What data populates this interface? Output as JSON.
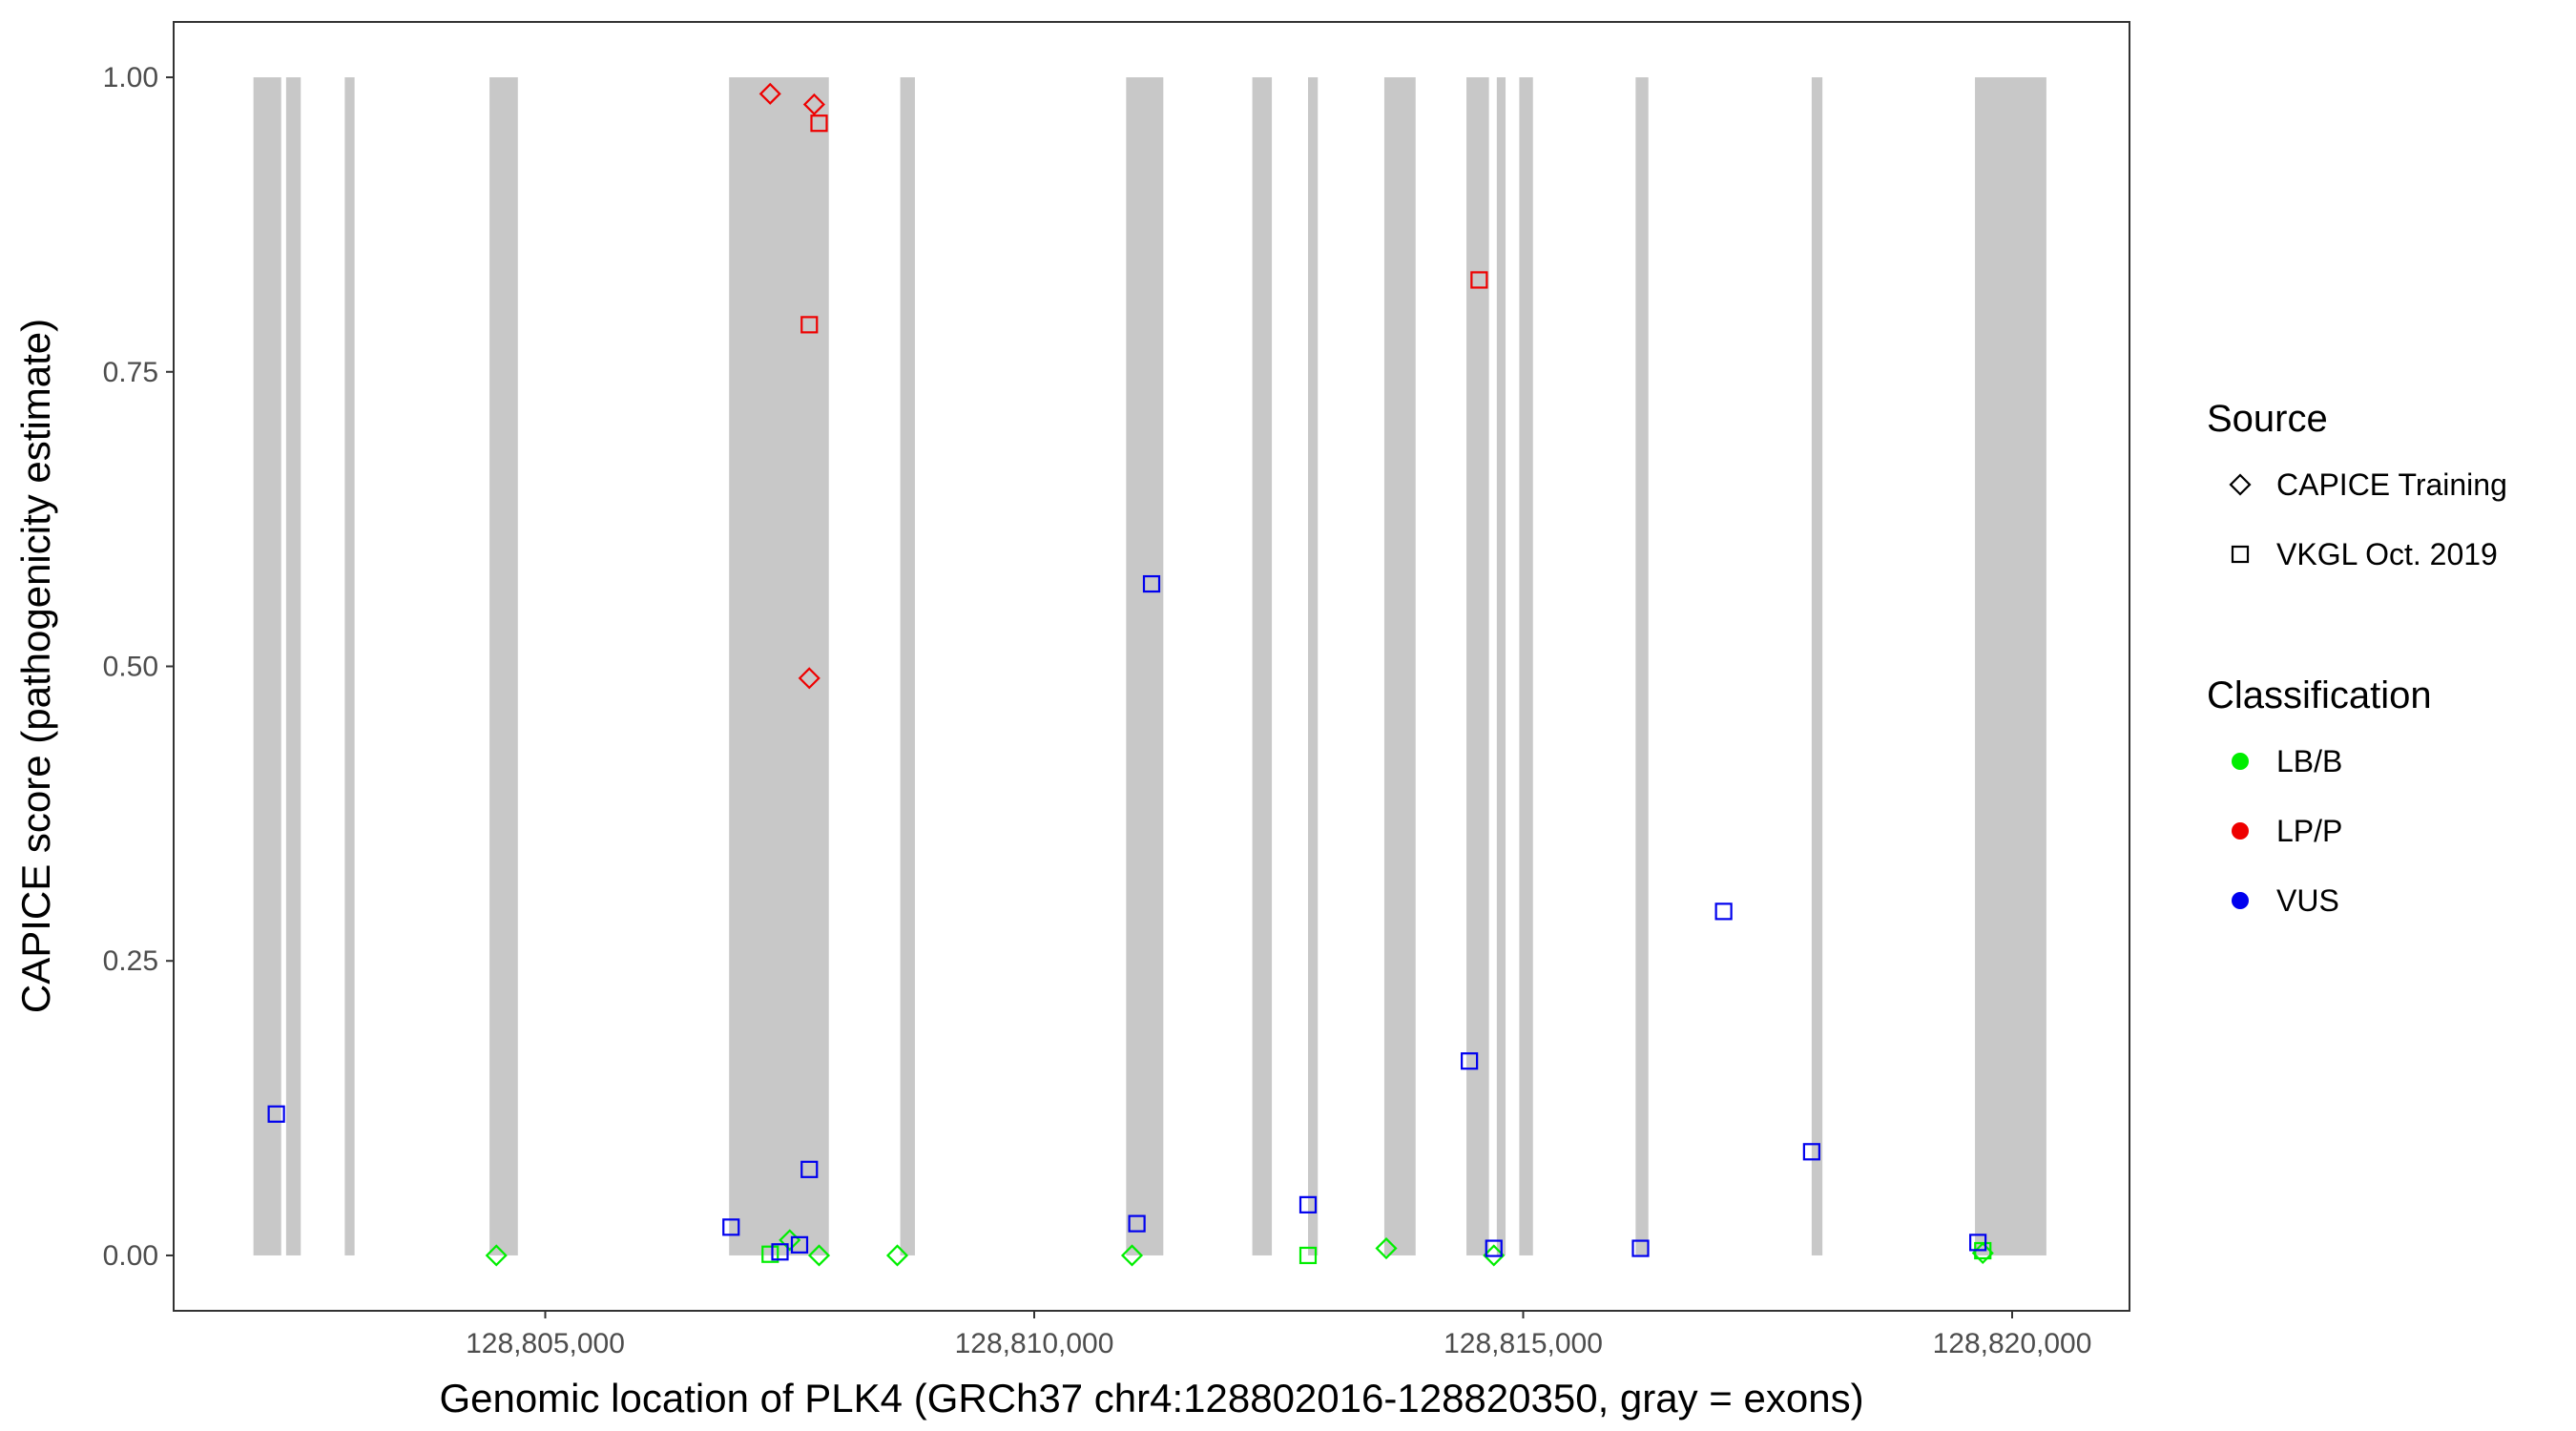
{
  "chart_data": {
    "type": "scatter",
    "title": "",
    "xlabel": "Genomic location of PLK4 (GRCh37 chr4:128802016-128820350, gray = exons)",
    "ylabel": "CAPICE score (pathogenicity estimate)",
    "xlim": [
      128801200,
      128821200
    ],
    "ylim": [
      -0.047,
      1.047
    ],
    "x_ticks": [
      128805000,
      128810000,
      128815000,
      128820000
    ],
    "x_tick_labels": [
      "128,805,000",
      "128,810,000",
      "128,815,000",
      "128,820,000"
    ],
    "y_ticks": [
      0,
      0.25,
      0.5,
      0.75,
      1
    ],
    "y_tick_labels": [
      "0.00",
      "0.25",
      "0.50",
      "0.75",
      "1.00"
    ],
    "grid": false,
    "legend_position": "right",
    "exons": [
      [
        128802016,
        128802300
      ],
      [
        128802350,
        128802500
      ],
      [
        128802950,
        128803050
      ],
      [
        128804430,
        128804720
      ],
      [
        128806880,
        128807900
      ],
      [
        128808630,
        128808780
      ],
      [
        128810940,
        128811320
      ],
      [
        128812230,
        128812430
      ],
      [
        128812800,
        128812900
      ],
      [
        128813580,
        128813900
      ],
      [
        128814420,
        128814650
      ],
      [
        128814730,
        128814820
      ],
      [
        128814960,
        128815100
      ],
      [
        128816150,
        128816280
      ],
      [
        128817950,
        128818060
      ],
      [
        128819620,
        128820350
      ]
    ],
    "colors": {
      "LB/B": "#00ee00",
      "LP/P": "#ee0000",
      "VUS": "#0000ee",
      "exon": "#c8c8c8"
    },
    "legend": {
      "source_title": "Source",
      "source_items": [
        {
          "label": "CAPICE Training",
          "shape": "diamond"
        },
        {
          "label": "VKGL Oct. 2019",
          "shape": "square"
        }
      ],
      "class_title": "Classification",
      "class_items": [
        {
          "label": "LB/B"
        },
        {
          "label": "LP/P"
        },
        {
          "label": "VUS"
        }
      ]
    },
    "series": [
      {
        "name": "CAPICE Training",
        "shape": "diamond",
        "points": [
          {
            "x": 128807300,
            "y": 0.986,
            "class": "LP/P"
          },
          {
            "x": 128807750,
            "y": 0.977,
            "class": "LP/P"
          },
          {
            "x": 128807700,
            "y": 0.49,
            "class": "LP/P"
          },
          {
            "x": 128804500,
            "y": 0.0,
            "class": "LB/B"
          },
          {
            "x": 128807500,
            "y": 0.013,
            "class": "LB/B"
          },
          {
            "x": 128807800,
            "y": 0.0,
            "class": "LB/B"
          },
          {
            "x": 128808600,
            "y": 0.0,
            "class": "LB/B"
          },
          {
            "x": 128811000,
            "y": 0.0,
            "class": "LB/B"
          },
          {
            "x": 128813600,
            "y": 0.006,
            "class": "LB/B"
          },
          {
            "x": 128814700,
            "y": 0.0,
            "class": "LB/B"
          },
          {
            "x": 128819700,
            "y": 0.002,
            "class": "LB/B"
          }
        ]
      },
      {
        "name": "VKGL Oct. 2019",
        "shape": "square",
        "points": [
          {
            "x": 128807800,
            "y": 0.961,
            "class": "LP/P"
          },
          {
            "x": 128807700,
            "y": 0.79,
            "class": "LP/P"
          },
          {
            "x": 128814550,
            "y": 0.828,
            "class": "LP/P"
          },
          {
            "x": 128807300,
            "y": 0.001,
            "class": "LB/B"
          },
          {
            "x": 128812800,
            "y": 0.0,
            "class": "LB/B"
          },
          {
            "x": 128819700,
            "y": 0.004,
            "class": "LB/B"
          },
          {
            "x": 128802250,
            "y": 0.12,
            "class": "VUS"
          },
          {
            "x": 128806900,
            "y": 0.024,
            "class": "VUS"
          },
          {
            "x": 128807400,
            "y": 0.003,
            "class": "VUS"
          },
          {
            "x": 128807600,
            "y": 0.009,
            "class": "VUS"
          },
          {
            "x": 128807700,
            "y": 0.073,
            "class": "VUS"
          },
          {
            "x": 128811050,
            "y": 0.027,
            "class": "VUS"
          },
          {
            "x": 128811200,
            "y": 0.57,
            "class": "VUS"
          },
          {
            "x": 128812800,
            "y": 0.043,
            "class": "VUS"
          },
          {
            "x": 128814450,
            "y": 0.165,
            "class": "VUS"
          },
          {
            "x": 128814700,
            "y": 0.006,
            "class": "VUS"
          },
          {
            "x": 128816200,
            "y": 0.006,
            "class": "VUS"
          },
          {
            "x": 128817050,
            "y": 0.292,
            "class": "VUS"
          },
          {
            "x": 128817950,
            "y": 0.088,
            "class": "VUS"
          },
          {
            "x": 128819650,
            "y": 0.011,
            "class": "VUS"
          }
        ]
      }
    ]
  }
}
